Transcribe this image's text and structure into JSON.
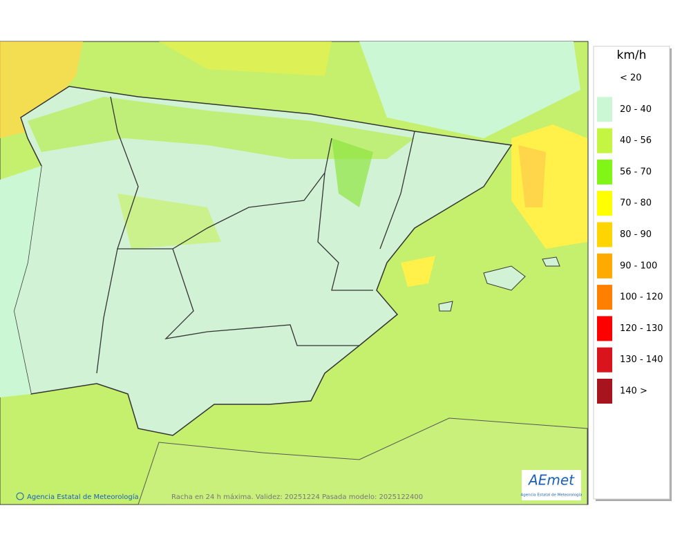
{
  "legend": {
    "title": "km/h",
    "items": [
      {
        "label": "< 20",
        "color": "#ffffff"
      },
      {
        "label": "20 - 40",
        "color": "#ccf7d4"
      },
      {
        "label": "40 - 56",
        "color": "#c4f542"
      },
      {
        "label": "56 - 70",
        "color": "#80f516"
      },
      {
        "label": "70 - 80",
        "color": "#ffff00"
      },
      {
        "label": "80 - 90",
        "color": "#ffd500"
      },
      {
        "label": "90 - 100",
        "color": "#ffaa00"
      },
      {
        "label": "100 - 120",
        "color": "#ff8000"
      },
      {
        "label": "120 - 130",
        "color": "#ff0000"
      },
      {
        "label": "130 - 140",
        "color": "#d9141c"
      },
      {
        "label": "140 >",
        "color": "#a8141e"
      }
    ]
  },
  "footer": {
    "credit": "Agencia Estatal de Meteorología",
    "caption": "Racha en 24 h máxima. Validez: 20251224 Pasada modelo: 2025122400"
  },
  "logo": {
    "text": "AEmet",
    "subtitle": "Agencia Estatal de Meteorología"
  }
}
